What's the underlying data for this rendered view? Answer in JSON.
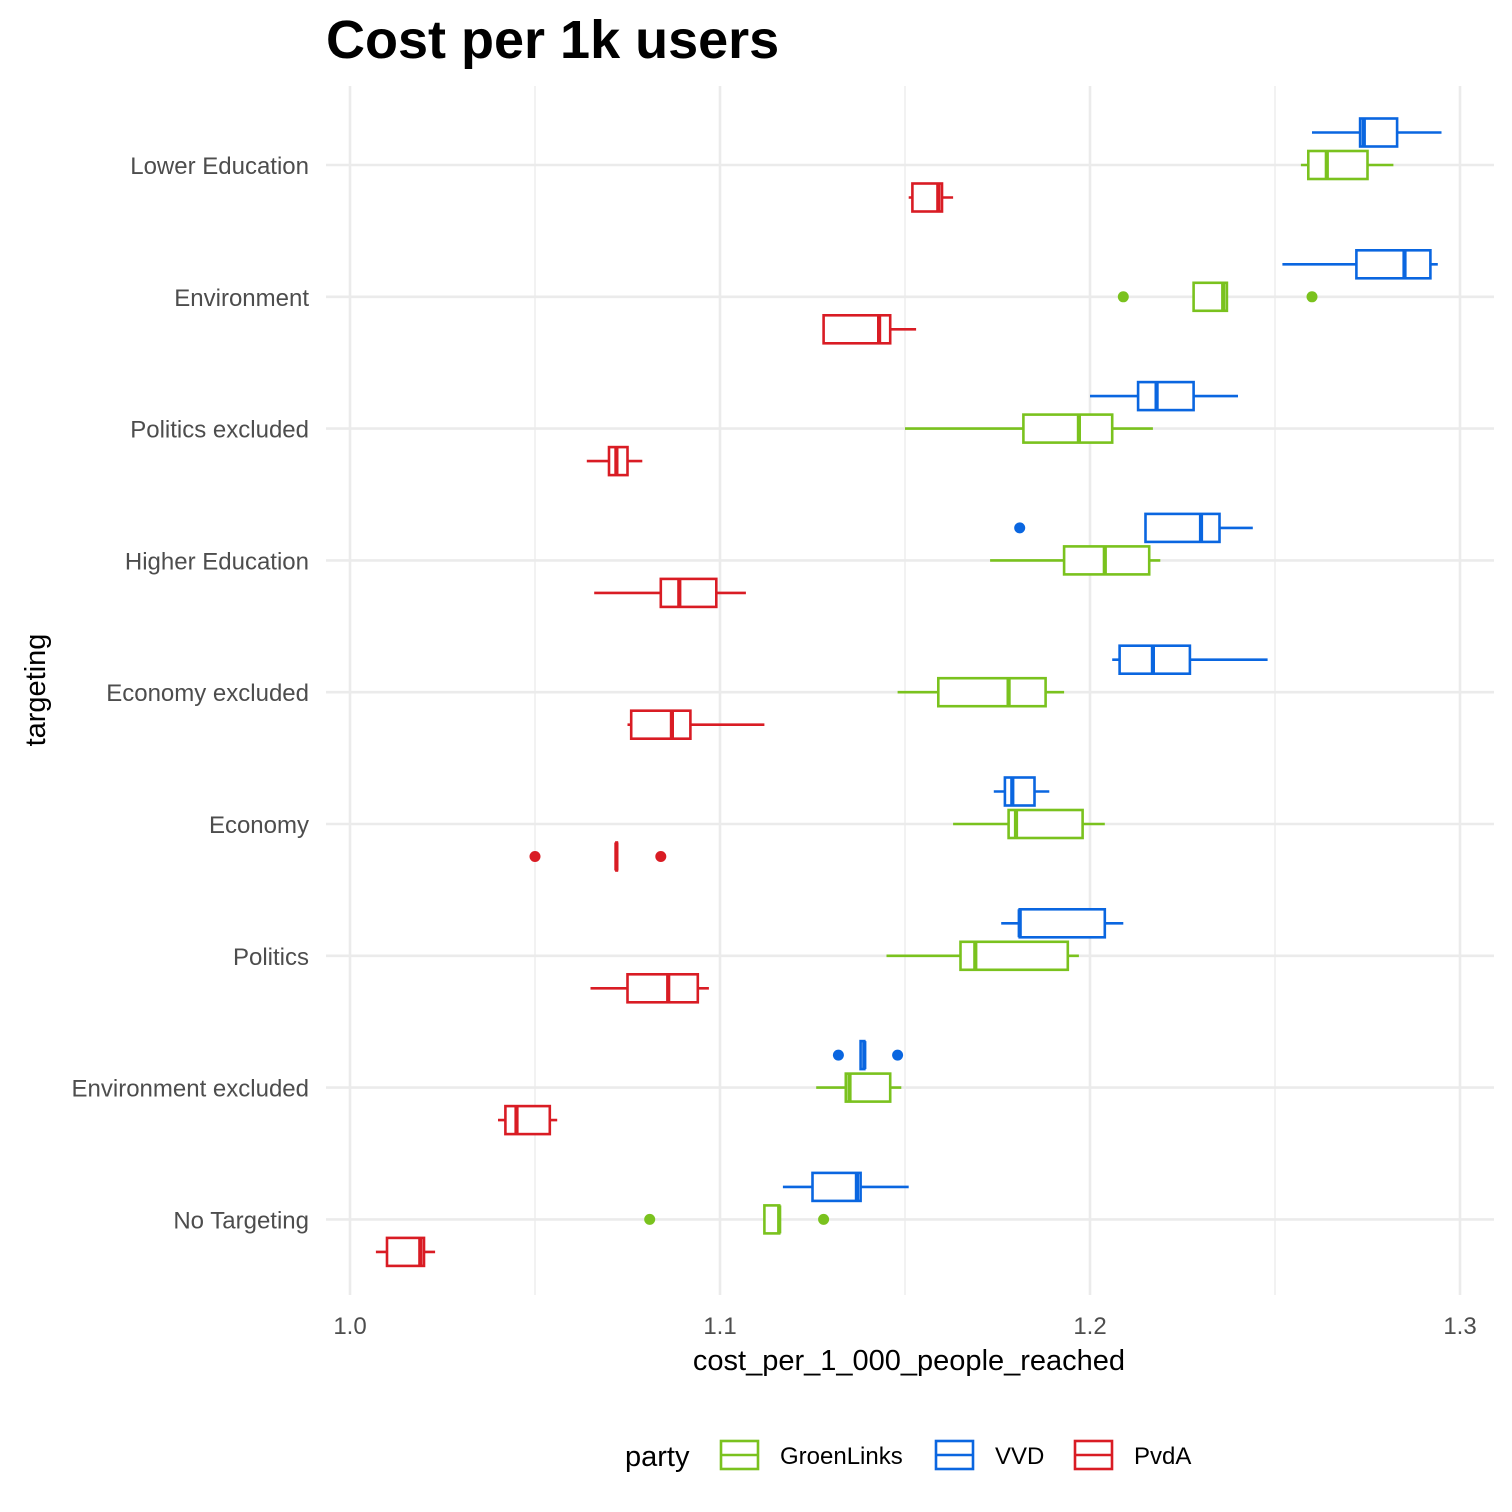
{
  "chart_data": {
    "type": "boxplot",
    "orientation": "horizontal",
    "title": "Cost per 1k users",
    "xlabel": "cost_per_1_000_people_reached",
    "ylabel": "targeting",
    "xlim": [
      1.0,
      1.3
    ],
    "xticks": [
      "1.0",
      "1.1",
      "1.2",
      "1.3"
    ],
    "xtick_values": [
      1.0,
      1.1,
      1.2,
      1.3
    ],
    "grid": true,
    "legend": {
      "title": "party",
      "position": "bottom",
      "entries": [
        "GroenLinks",
        "VVD",
        "PvdA"
      ]
    },
    "colors": {
      "GroenLinks": "#7ac21e",
      "VVD": "#0a66e0",
      "PvdA": "#d91c24"
    },
    "categories": [
      "Lower Education",
      "Environment",
      "Politics excluded",
      "Higher Education",
      "Economy excluded",
      "Economy",
      "Politics",
      "Environment excluded",
      "No Targeting"
    ],
    "series": [
      {
        "name": "VVD",
        "boxes": [
          {
            "category": "Lower Education",
            "min": 1.26,
            "q1": 1.273,
            "median": 1.274,
            "q3": 1.283,
            "max": 1.295,
            "outliers": []
          },
          {
            "category": "Environment",
            "min": 1.252,
            "q1": 1.272,
            "median": 1.285,
            "q3": 1.292,
            "max": 1.294,
            "outliers": []
          },
          {
            "category": "Politics excluded",
            "min": 1.2,
            "q1": 1.213,
            "median": 1.218,
            "q3": 1.228,
            "max": 1.24,
            "outliers": []
          },
          {
            "category": "Higher Education",
            "min": 1.215,
            "q1": 1.215,
            "median": 1.23,
            "q3": 1.235,
            "max": 1.244,
            "outliers": [
              1.181
            ]
          },
          {
            "category": "Economy excluded",
            "min": 1.206,
            "q1": 1.208,
            "median": 1.217,
            "q3": 1.227,
            "max": 1.248,
            "outliers": []
          },
          {
            "category": "Economy",
            "min": 1.174,
            "q1": 1.177,
            "median": 1.179,
            "q3": 1.185,
            "max": 1.189,
            "outliers": []
          },
          {
            "category": "Politics",
            "min": 1.176,
            "q1": 1.181,
            "median": 1.181,
            "q3": 1.204,
            "max": 1.209,
            "outliers": []
          },
          {
            "category": "Environment excluded",
            "min": 1.138,
            "q1": 1.138,
            "median": 1.139,
            "q3": 1.139,
            "max": 1.139,
            "outliers": [
              1.132,
              1.148
            ]
          },
          {
            "category": "No Targeting",
            "min": 1.117,
            "q1": 1.125,
            "median": 1.137,
            "q3": 1.138,
            "max": 1.151,
            "outliers": []
          }
        ]
      },
      {
        "name": "GroenLinks",
        "boxes": [
          {
            "category": "Lower Education",
            "min": 1.257,
            "q1": 1.259,
            "median": 1.264,
            "q3": 1.275,
            "max": 1.282,
            "outliers": []
          },
          {
            "category": "Environment",
            "min": 1.228,
            "q1": 1.228,
            "median": 1.236,
            "q3": 1.237,
            "max": 1.237,
            "outliers": [
              1.209,
              1.26
            ]
          },
          {
            "category": "Politics excluded",
            "min": 1.15,
            "q1": 1.182,
            "median": 1.197,
            "q3": 1.206,
            "max": 1.217,
            "outliers": []
          },
          {
            "category": "Higher Education",
            "min": 1.173,
            "q1": 1.193,
            "median": 1.204,
            "q3": 1.216,
            "max": 1.219,
            "outliers": []
          },
          {
            "category": "Economy excluded",
            "min": 1.148,
            "q1": 1.159,
            "median": 1.178,
            "q3": 1.188,
            "max": 1.193,
            "outliers": []
          },
          {
            "category": "Economy",
            "min": 1.163,
            "q1": 1.178,
            "median": 1.18,
            "q3": 1.198,
            "max": 1.204,
            "outliers": []
          },
          {
            "category": "Politics",
            "min": 1.145,
            "q1": 1.165,
            "median": 1.169,
            "q3": 1.194,
            "max": 1.197,
            "outliers": []
          },
          {
            "category": "Environment excluded",
            "min": 1.126,
            "q1": 1.134,
            "median": 1.135,
            "q3": 1.146,
            "max": 1.149,
            "outliers": []
          },
          {
            "category": "No Targeting",
            "min": 1.112,
            "q1": 1.112,
            "median": 1.116,
            "q3": 1.116,
            "max": 1.116,
            "outliers": [
              1.081,
              1.128
            ]
          }
        ]
      },
      {
        "name": "PvdA",
        "boxes": [
          {
            "category": "Lower Education",
            "min": 1.151,
            "q1": 1.152,
            "median": 1.159,
            "q3": 1.16,
            "max": 1.163,
            "outliers": []
          },
          {
            "category": "Environment",
            "min": 1.128,
            "q1": 1.128,
            "median": 1.143,
            "q3": 1.146,
            "max": 1.153,
            "outliers": []
          },
          {
            "category": "Politics excluded",
            "min": 1.064,
            "q1": 1.07,
            "median": 1.072,
            "q3": 1.075,
            "max": 1.079,
            "outliers": []
          },
          {
            "category": "Higher Education",
            "min": 1.066,
            "q1": 1.084,
            "median": 1.089,
            "q3": 1.099,
            "max": 1.107,
            "outliers": []
          },
          {
            "category": "Economy excluded",
            "min": 1.075,
            "q1": 1.076,
            "median": 1.087,
            "q3": 1.092,
            "max": 1.112,
            "outliers": []
          },
          {
            "category": "Economy",
            "min": 1.072,
            "q1": 1.072,
            "median": 1.072,
            "q3": 1.072,
            "max": 1.072,
            "outliers": [
              1.05,
              1.084
            ]
          },
          {
            "category": "Politics",
            "min": 1.065,
            "q1": 1.075,
            "median": 1.086,
            "q3": 1.094,
            "max": 1.097,
            "outliers": []
          },
          {
            "category": "Environment excluded",
            "min": 1.04,
            "q1": 1.042,
            "median": 1.045,
            "q3": 1.054,
            "max": 1.056,
            "outliers": []
          },
          {
            "category": "No Targeting",
            "min": 1.007,
            "q1": 1.01,
            "median": 1.019,
            "q3": 1.02,
            "max": 1.023,
            "outliers": []
          }
        ]
      }
    ]
  }
}
